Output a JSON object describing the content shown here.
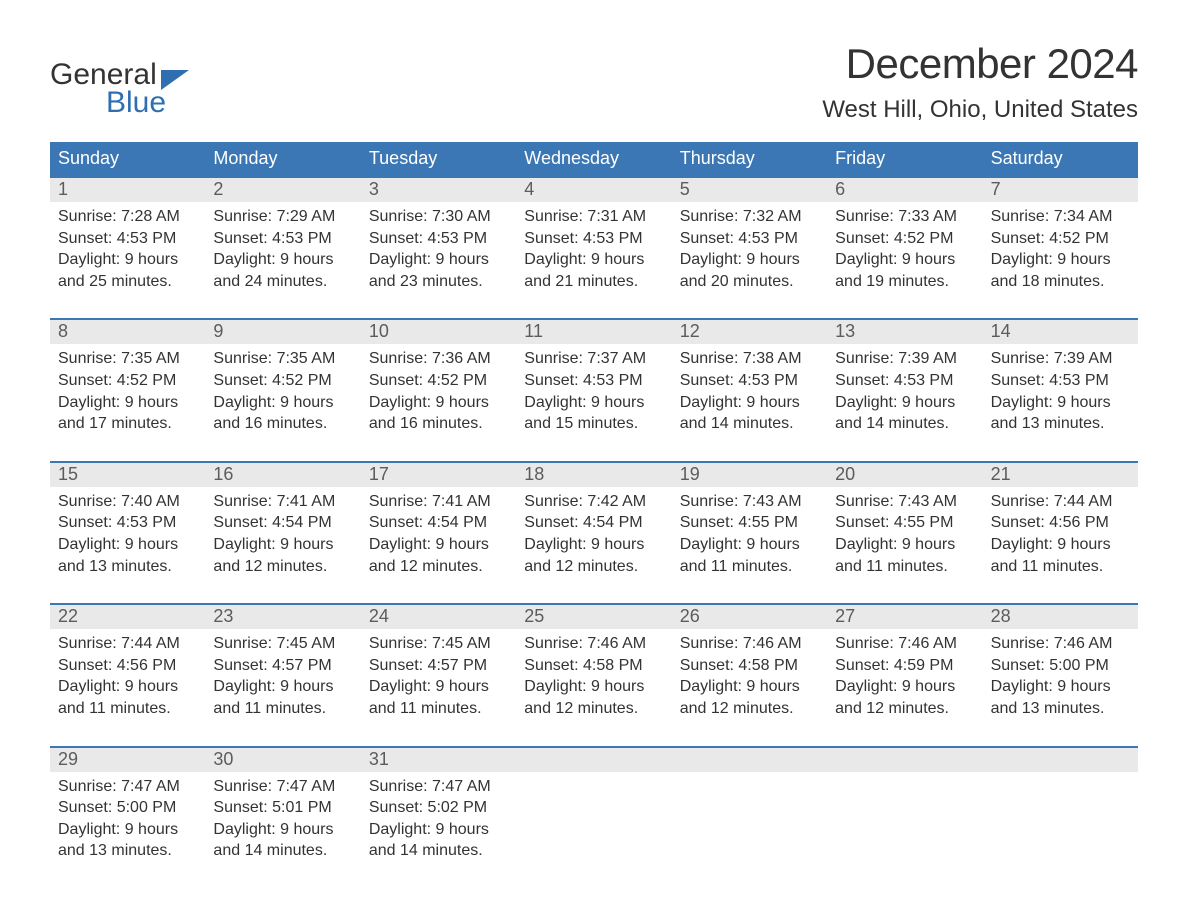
{
  "colors": {
    "header_bg": "#3b77b4",
    "header_text": "#ffffff",
    "daynum_bg": "#e9e9e9",
    "daynum_text": "#5c5c5c",
    "body_text": "#333333",
    "accent_blue": "#2f6fb0",
    "page_bg": "#ffffff",
    "week_top_border": "#3b77b4"
  },
  "typography": {
    "title_fontsize": 42,
    "location_fontsize": 24,
    "dayname_fontsize": 18,
    "daynum_fontsize": 18,
    "cell_fontsize": 16,
    "font_family": "Arial"
  },
  "logo": {
    "line1": "General",
    "line2": "Blue",
    "flag_color": "#2f6fb0"
  },
  "title": "December 2024",
  "location": "West Hill, Ohio, United States",
  "day_names": [
    "Sunday",
    "Monday",
    "Tuesday",
    "Wednesday",
    "Thursday",
    "Friday",
    "Saturday"
  ],
  "weeks": [
    [
      {
        "n": "1",
        "sunrise": "Sunrise: 7:28 AM",
        "sunset": "Sunset: 4:53 PM",
        "d1": "Daylight: 9 hours",
        "d2": "and 25 minutes."
      },
      {
        "n": "2",
        "sunrise": "Sunrise: 7:29 AM",
        "sunset": "Sunset: 4:53 PM",
        "d1": "Daylight: 9 hours",
        "d2": "and 24 minutes."
      },
      {
        "n": "3",
        "sunrise": "Sunrise: 7:30 AM",
        "sunset": "Sunset: 4:53 PM",
        "d1": "Daylight: 9 hours",
        "d2": "and 23 minutes."
      },
      {
        "n": "4",
        "sunrise": "Sunrise: 7:31 AM",
        "sunset": "Sunset: 4:53 PM",
        "d1": "Daylight: 9 hours",
        "d2": "and 21 minutes."
      },
      {
        "n": "5",
        "sunrise": "Sunrise: 7:32 AM",
        "sunset": "Sunset: 4:53 PM",
        "d1": "Daylight: 9 hours",
        "d2": "and 20 minutes."
      },
      {
        "n": "6",
        "sunrise": "Sunrise: 7:33 AM",
        "sunset": "Sunset: 4:52 PM",
        "d1": "Daylight: 9 hours",
        "d2": "and 19 minutes."
      },
      {
        "n": "7",
        "sunrise": "Sunrise: 7:34 AM",
        "sunset": "Sunset: 4:52 PM",
        "d1": "Daylight: 9 hours",
        "d2": "and 18 minutes."
      }
    ],
    [
      {
        "n": "8",
        "sunrise": "Sunrise: 7:35 AM",
        "sunset": "Sunset: 4:52 PM",
        "d1": "Daylight: 9 hours",
        "d2": "and 17 minutes."
      },
      {
        "n": "9",
        "sunrise": "Sunrise: 7:35 AM",
        "sunset": "Sunset: 4:52 PM",
        "d1": "Daylight: 9 hours",
        "d2": "and 16 minutes."
      },
      {
        "n": "10",
        "sunrise": "Sunrise: 7:36 AM",
        "sunset": "Sunset: 4:52 PM",
        "d1": "Daylight: 9 hours",
        "d2": "and 16 minutes."
      },
      {
        "n": "11",
        "sunrise": "Sunrise: 7:37 AM",
        "sunset": "Sunset: 4:53 PM",
        "d1": "Daylight: 9 hours",
        "d2": "and 15 minutes."
      },
      {
        "n": "12",
        "sunrise": "Sunrise: 7:38 AM",
        "sunset": "Sunset: 4:53 PM",
        "d1": "Daylight: 9 hours",
        "d2": "and 14 minutes."
      },
      {
        "n": "13",
        "sunrise": "Sunrise: 7:39 AM",
        "sunset": "Sunset: 4:53 PM",
        "d1": "Daylight: 9 hours",
        "d2": "and 14 minutes."
      },
      {
        "n": "14",
        "sunrise": "Sunrise: 7:39 AM",
        "sunset": "Sunset: 4:53 PM",
        "d1": "Daylight: 9 hours",
        "d2": "and 13 minutes."
      }
    ],
    [
      {
        "n": "15",
        "sunrise": "Sunrise: 7:40 AM",
        "sunset": "Sunset: 4:53 PM",
        "d1": "Daylight: 9 hours",
        "d2": "and 13 minutes."
      },
      {
        "n": "16",
        "sunrise": "Sunrise: 7:41 AM",
        "sunset": "Sunset: 4:54 PM",
        "d1": "Daylight: 9 hours",
        "d2": "and 12 minutes."
      },
      {
        "n": "17",
        "sunrise": "Sunrise: 7:41 AM",
        "sunset": "Sunset: 4:54 PM",
        "d1": "Daylight: 9 hours",
        "d2": "and 12 minutes."
      },
      {
        "n": "18",
        "sunrise": "Sunrise: 7:42 AM",
        "sunset": "Sunset: 4:54 PM",
        "d1": "Daylight: 9 hours",
        "d2": "and 12 minutes."
      },
      {
        "n": "19",
        "sunrise": "Sunrise: 7:43 AM",
        "sunset": "Sunset: 4:55 PM",
        "d1": "Daylight: 9 hours",
        "d2": "and 11 minutes."
      },
      {
        "n": "20",
        "sunrise": "Sunrise: 7:43 AM",
        "sunset": "Sunset: 4:55 PM",
        "d1": "Daylight: 9 hours",
        "d2": "and 11 minutes."
      },
      {
        "n": "21",
        "sunrise": "Sunrise: 7:44 AM",
        "sunset": "Sunset: 4:56 PM",
        "d1": "Daylight: 9 hours",
        "d2": "and 11 minutes."
      }
    ],
    [
      {
        "n": "22",
        "sunrise": "Sunrise: 7:44 AM",
        "sunset": "Sunset: 4:56 PM",
        "d1": "Daylight: 9 hours",
        "d2": "and 11 minutes."
      },
      {
        "n": "23",
        "sunrise": "Sunrise: 7:45 AM",
        "sunset": "Sunset: 4:57 PM",
        "d1": "Daylight: 9 hours",
        "d2": "and 11 minutes."
      },
      {
        "n": "24",
        "sunrise": "Sunrise: 7:45 AM",
        "sunset": "Sunset: 4:57 PM",
        "d1": "Daylight: 9 hours",
        "d2": "and 11 minutes."
      },
      {
        "n": "25",
        "sunrise": "Sunrise: 7:46 AM",
        "sunset": "Sunset: 4:58 PM",
        "d1": "Daylight: 9 hours",
        "d2": "and 12 minutes."
      },
      {
        "n": "26",
        "sunrise": "Sunrise: 7:46 AM",
        "sunset": "Sunset: 4:58 PM",
        "d1": "Daylight: 9 hours",
        "d2": "and 12 minutes."
      },
      {
        "n": "27",
        "sunrise": "Sunrise: 7:46 AM",
        "sunset": "Sunset: 4:59 PM",
        "d1": "Daylight: 9 hours",
        "d2": "and 12 minutes."
      },
      {
        "n": "28",
        "sunrise": "Sunrise: 7:46 AM",
        "sunset": "Sunset: 5:00 PM",
        "d1": "Daylight: 9 hours",
        "d2": "and 13 minutes."
      }
    ],
    [
      {
        "n": "29",
        "sunrise": "Sunrise: 7:47 AM",
        "sunset": "Sunset: 5:00 PM",
        "d1": "Daylight: 9 hours",
        "d2": "and 13 minutes."
      },
      {
        "n": "30",
        "sunrise": "Sunrise: 7:47 AM",
        "sunset": "Sunset: 5:01 PM",
        "d1": "Daylight: 9 hours",
        "d2": "and 14 minutes."
      },
      {
        "n": "31",
        "sunrise": "Sunrise: 7:47 AM",
        "sunset": "Sunset: 5:02 PM",
        "d1": "Daylight: 9 hours",
        "d2": "and 14 minutes."
      },
      null,
      null,
      null,
      null
    ]
  ]
}
